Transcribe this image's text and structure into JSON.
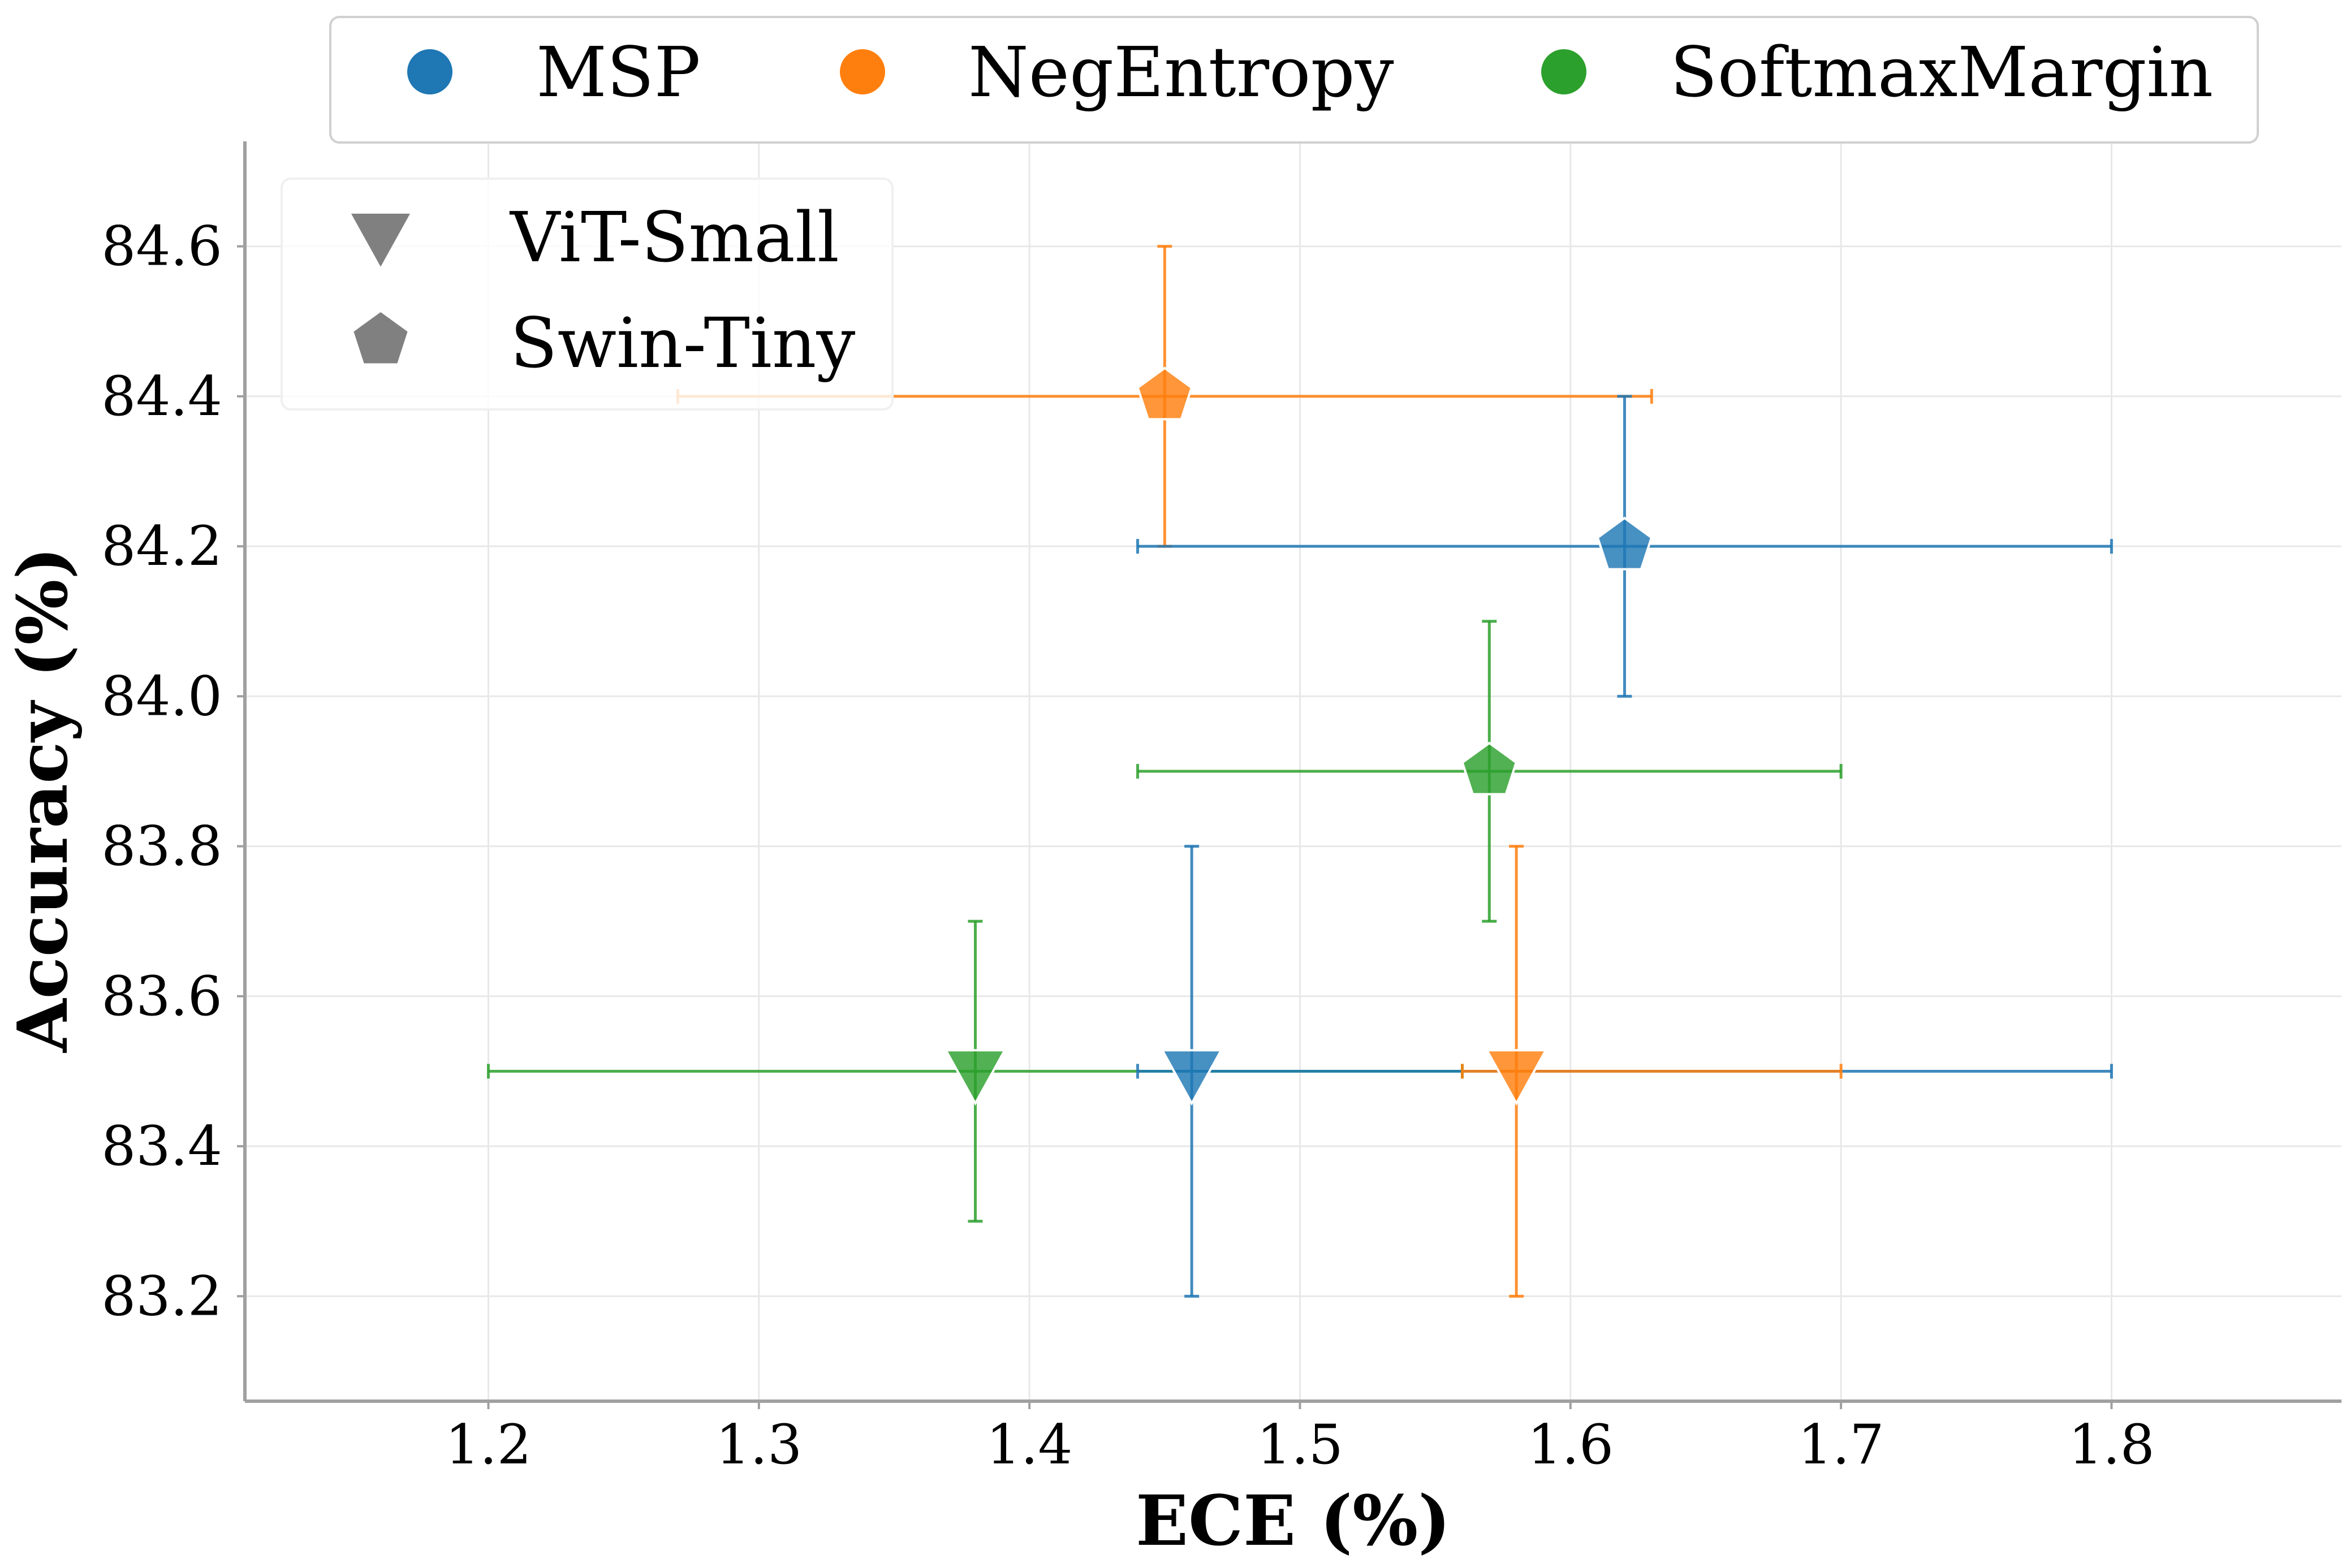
{
  "chart_data": {
    "type": "scatter",
    "title": "",
    "xlabel": "ECE (%)",
    "ylabel": "Accuracy (%)",
    "xlim": [
      1.11,
      1.885
    ],
    "ylim": [
      83.06,
      84.74
    ],
    "xticks": [
      1.2,
      1.3,
      1.4,
      1.5,
      1.6,
      1.7,
      1.8
    ],
    "yticks": [
      83.2,
      83.4,
      83.6,
      83.8,
      84.0,
      84.2,
      84.4,
      84.6
    ],
    "xtick_labels": [
      "1.2",
      "1.3",
      "1.4",
      "1.5",
      "1.6",
      "1.7",
      "1.8"
    ],
    "ytick_labels": [
      "83.2",
      "83.4",
      "83.6",
      "83.8",
      "84.0",
      "84.2",
      "84.4",
      "84.6"
    ],
    "grid": true,
    "methods": [
      {
        "name": "MSP",
        "color": "#1f77b4"
      },
      {
        "name": "NegEntropy",
        "color": "#ff7f0e"
      },
      {
        "name": "SoftmaxMargin",
        "color": "#2ca02c"
      }
    ],
    "models": [
      {
        "name": "ViT-Small",
        "marker": "triangle-down"
      },
      {
        "name": "Swin-Tiny",
        "marker": "pentagon"
      }
    ],
    "legend_methods_position": "top-center",
    "legend_models_position": "upper-left",
    "series": [
      {
        "method": "SoftmaxMargin",
        "model": "ViT-Small",
        "x": 1.38,
        "y": 83.5,
        "xerr": [
          1.2,
          1.56
        ],
        "yerr": [
          83.3,
          83.7
        ]
      },
      {
        "method": "MSP",
        "model": "ViT-Small",
        "x": 1.46,
        "y": 83.5,
        "xerr": [
          1.44,
          1.8
        ],
        "yerr": [
          83.2,
          83.8
        ]
      },
      {
        "method": "NegEntropy",
        "model": "ViT-Small",
        "x": 1.58,
        "y": 83.5,
        "xerr": [
          1.56,
          1.7
        ],
        "yerr": [
          83.2,
          83.8
        ]
      },
      {
        "method": "NegEntropy",
        "model": "Swin-Tiny",
        "x": 1.45,
        "y": 84.4,
        "xerr": [
          1.27,
          1.63
        ],
        "yerr": [
          84.2,
          84.6
        ]
      },
      {
        "method": "MSP",
        "model": "Swin-Tiny",
        "x": 1.62,
        "y": 84.2,
        "xerr": [
          1.44,
          1.8
        ],
        "yerr": [
          84.0,
          84.4
        ]
      },
      {
        "method": "SoftmaxMargin",
        "model": "Swin-Tiny",
        "x": 1.57,
        "y": 83.9,
        "xerr": [
          1.44,
          1.7
        ],
        "yerr": [
          83.7,
          84.1
        ]
      }
    ]
  }
}
